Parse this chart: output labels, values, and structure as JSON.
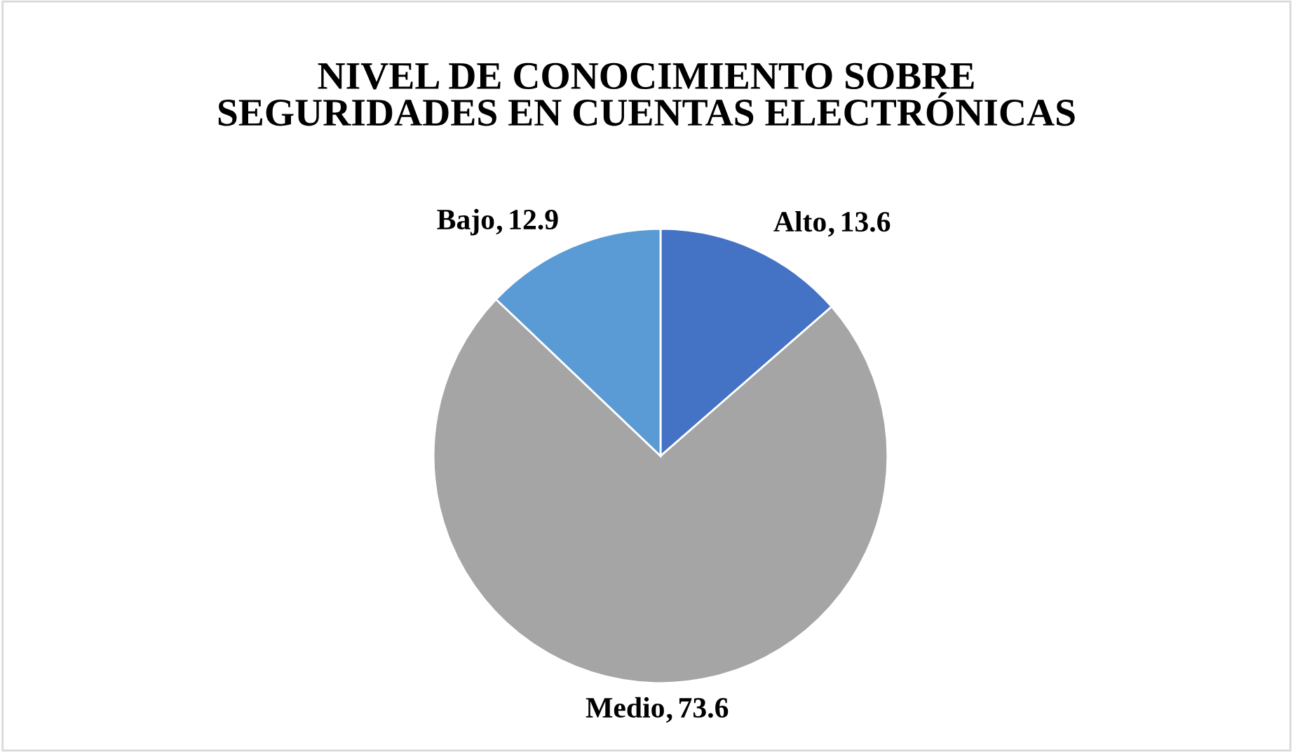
{
  "chart_data": {
    "type": "pie",
    "title": "NIVEL DE CONOCIMIENTO SOBRE\nSEGURIDADES EN CUENTAS ELECTRÓNICAS",
    "categories": [
      "Alto",
      "Medio",
      "Bajo"
    ],
    "values": [
      13.6,
      73.6,
      12.9
    ],
    "colors": [
      "#4472c4",
      "#a5a5a5",
      "#5b9bd5"
    ],
    "data_labels": true,
    "legend": false
  }
}
